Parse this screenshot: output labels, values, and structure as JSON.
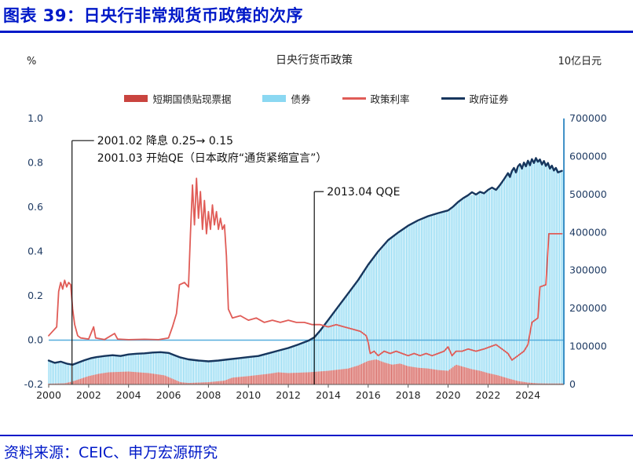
{
  "figure": {
    "title": "图表 39：日央行非常规货币政策的次序",
    "source": "资料来源：CEIC、申万宏源研究"
  },
  "colors": {
    "accent_blue": "#0019c8",
    "annotation_black": "#111111",
    "navy": "#17365d",
    "policy_red": "#e05c57",
    "bills_red": "#c9443f",
    "bond_lightblue": "#8bd8f2"
  },
  "chart_data": {
    "type": "combo",
    "title": "日央行货币政策",
    "grid": false,
    "legend_position": "top",
    "zero_line_color": "#56aedd",
    "right_spine_color": "#2e86c1",
    "left_axis": {
      "label": "%",
      "min": -0.2,
      "max": 1.0,
      "ticks": [
        "1.0",
        "0.8",
        "0.6",
        "0.4",
        "0.2",
        "0.0",
        "-0.2"
      ]
    },
    "right_axis": {
      "label": "10亿日元",
      "min": 0,
      "max": 700000,
      "ticks": [
        "700000",
        "600000",
        "500000",
        "400000",
        "300000",
        "200000",
        "100000",
        "0"
      ]
    },
    "x_axis": {
      "min": 2000,
      "max": 2025.8,
      "ticks": [
        "2000",
        "2002",
        "2004",
        "2006",
        "2008",
        "2010",
        "2012",
        "2014",
        "2016",
        "2018",
        "2020",
        "2022",
        "2024"
      ]
    },
    "series": [
      {
        "role": "bills",
        "name": "短期国债贴现票据",
        "type": "bar",
        "axis": "right",
        "color": "#c9443f",
        "color_light": "#f3c3bf",
        "points": [
          [
            2000.0,
            2000
          ],
          [
            2000.8,
            3000
          ],
          [
            2001.2,
            8000
          ],
          [
            2001.6,
            15000
          ],
          [
            2002.0,
            22000
          ],
          [
            2002.5,
            28000
          ],
          [
            2003.0,
            32000
          ],
          [
            2004.0,
            34000
          ],
          [
            2005.0,
            30000
          ],
          [
            2005.8,
            24000
          ],
          [
            2006.2,
            15000
          ],
          [
            2006.6,
            6000
          ],
          [
            2007.0,
            4000
          ],
          [
            2008.0,
            6000
          ],
          [
            2008.8,
            10000
          ],
          [
            2009.2,
            18000
          ],
          [
            2010.0,
            22000
          ],
          [
            2011.0,
            28000
          ],
          [
            2011.5,
            32000
          ],
          [
            2012.0,
            30000
          ],
          [
            2013.0,
            32000
          ],
          [
            2014.0,
            36000
          ],
          [
            2015.0,
            42000
          ],
          [
            2015.5,
            50000
          ],
          [
            2016.0,
            62000
          ],
          [
            2016.4,
            66000
          ],
          [
            2016.8,
            58000
          ],
          [
            2017.2,
            52000
          ],
          [
            2017.6,
            55000
          ],
          [
            2018.0,
            48000
          ],
          [
            2018.5,
            44000
          ],
          [
            2019.0,
            42000
          ],
          [
            2019.5,
            38000
          ],
          [
            2020.0,
            36000
          ],
          [
            2020.4,
            52000
          ],
          [
            2020.8,
            46000
          ],
          [
            2021.2,
            40000
          ],
          [
            2021.6,
            36000
          ],
          [
            2022.0,
            30000
          ],
          [
            2022.5,
            24000
          ],
          [
            2023.0,
            16000
          ],
          [
            2023.5,
            9000
          ],
          [
            2024.0,
            5000
          ],
          [
            2024.5,
            3000
          ],
          [
            2025.0,
            2500
          ],
          [
            2025.7,
            2500
          ]
        ]
      },
      {
        "role": "bonds",
        "name": "债券",
        "type": "bar",
        "axis": "right",
        "color": "#8bd8f2",
        "points": [
          [
            2000.0,
            62000
          ],
          [
            2000.5,
            57000
          ],
          [
            2001.0,
            54000
          ],
          [
            2001.5,
            58000
          ],
          [
            2002.0,
            68000
          ],
          [
            2003.0,
            76000
          ],
          [
            2004.0,
            79000
          ],
          [
            2005.0,
            83000
          ],
          [
            2006.0,
            82000
          ],
          [
            2006.5,
            74000
          ],
          [
            2007.0,
            65000
          ],
          [
            2008.0,
            60000
          ],
          [
            2009.0,
            65000
          ],
          [
            2010.0,
            71000
          ],
          [
            2011.0,
            81000
          ],
          [
            2012.0,
            95000
          ],
          [
            2013.0,
            114000
          ],
          [
            2013.5,
            132000
          ],
          [
            2014.0,
            168000
          ],
          [
            2015.0,
            238000
          ],
          [
            2016.0,
            312000
          ],
          [
            2017.0,
            378000
          ],
          [
            2018.0,
            416000
          ],
          [
            2019.0,
            441000
          ],
          [
            2020.0,
            456000
          ],
          [
            2020.5,
            478000
          ],
          [
            2021.0,
            496000
          ],
          [
            2021.5,
            503000
          ],
          [
            2022.0,
            510000
          ],
          [
            2022.5,
            518000
          ],
          [
            2023.0,
            554000
          ],
          [
            2023.5,
            572000
          ],
          [
            2024.0,
            587000
          ],
          [
            2024.4,
            593000
          ],
          [
            2024.8,
            586000
          ],
          [
            2025.2,
            574000
          ],
          [
            2025.7,
            560000
          ]
        ]
      },
      {
        "role": "policy",
        "name": "政策利率",
        "type": "line",
        "axis": "left",
        "color": "#e05c57",
        "points": [
          [
            2000.0,
            0.02
          ],
          [
            2000.2,
            0.04
          ],
          [
            2000.4,
            0.06
          ],
          [
            2000.5,
            0.22
          ],
          [
            2000.6,
            0.26
          ],
          [
            2000.7,
            0.23
          ],
          [
            2000.8,
            0.27
          ],
          [
            2000.9,
            0.24
          ],
          [
            2001.0,
            0.26
          ],
          [
            2001.1,
            0.25
          ],
          [
            2001.2,
            0.14
          ],
          [
            2001.3,
            0.07
          ],
          [
            2001.45,
            0.02
          ],
          [
            2001.6,
            0.01
          ],
          [
            2002.0,
            0.005
          ],
          [
            2002.25,
            0.06
          ],
          [
            2002.35,
            0.01
          ],
          [
            2002.8,
            0.003
          ],
          [
            2003.3,
            0.03
          ],
          [
            2003.45,
            0.005
          ],
          [
            2004.0,
            0.002
          ],
          [
            2004.8,
            0.004
          ],
          [
            2005.5,
            0.002
          ],
          [
            2006.0,
            0.01
          ],
          [
            2006.2,
            0.06
          ],
          [
            2006.4,
            0.12
          ],
          [
            2006.55,
            0.25
          ],
          [
            2006.8,
            0.26
          ],
          [
            2007.0,
            0.24
          ],
          [
            2007.1,
            0.48
          ],
          [
            2007.2,
            0.7
          ],
          [
            2007.3,
            0.52
          ],
          [
            2007.4,
            0.73
          ],
          [
            2007.5,
            0.55
          ],
          [
            2007.6,
            0.67
          ],
          [
            2007.7,
            0.5
          ],
          [
            2007.8,
            0.63
          ],
          [
            2007.9,
            0.48
          ],
          [
            2008.0,
            0.58
          ],
          [
            2008.1,
            0.5
          ],
          [
            2008.2,
            0.61
          ],
          [
            2008.3,
            0.52
          ],
          [
            2008.4,
            0.58
          ],
          [
            2008.5,
            0.5
          ],
          [
            2008.6,
            0.55
          ],
          [
            2008.7,
            0.5
          ],
          [
            2008.8,
            0.52
          ],
          [
            2008.9,
            0.38
          ],
          [
            2009.0,
            0.14
          ],
          [
            2009.2,
            0.1
          ],
          [
            2009.6,
            0.11
          ],
          [
            2010.0,
            0.09
          ],
          [
            2010.4,
            0.1
          ],
          [
            2010.8,
            0.08
          ],
          [
            2011.2,
            0.09
          ],
          [
            2011.6,
            0.08
          ],
          [
            2012.0,
            0.09
          ],
          [
            2012.4,
            0.08
          ],
          [
            2012.8,
            0.08
          ],
          [
            2013.2,
            0.07
          ],
          [
            2013.6,
            0.07
          ],
          [
            2014.0,
            0.06
          ],
          [
            2014.4,
            0.07
          ],
          [
            2014.8,
            0.06
          ],
          [
            2015.2,
            0.05
          ],
          [
            2015.6,
            0.04
          ],
          [
            2015.9,
            0.02
          ],
          [
            2016.0,
            -0.01
          ],
          [
            2016.1,
            -0.06
          ],
          [
            2016.3,
            -0.05
          ],
          [
            2016.5,
            -0.07
          ],
          [
            2016.8,
            -0.05
          ],
          [
            2017.1,
            -0.06
          ],
          [
            2017.4,
            -0.05
          ],
          [
            2017.7,
            -0.06
          ],
          [
            2018.0,
            -0.07
          ],
          [
            2018.3,
            -0.06
          ],
          [
            2018.6,
            -0.07
          ],
          [
            2018.9,
            -0.06
          ],
          [
            2019.2,
            -0.07
          ],
          [
            2019.5,
            -0.06
          ],
          [
            2019.8,
            -0.05
          ],
          [
            2020.0,
            -0.03
          ],
          [
            2020.2,
            -0.07
          ],
          [
            2020.4,
            -0.05
          ],
          [
            2020.7,
            -0.05
          ],
          [
            2021.0,
            -0.04
          ],
          [
            2021.4,
            -0.05
          ],
          [
            2021.8,
            -0.04
          ],
          [
            2022.1,
            -0.03
          ],
          [
            2022.4,
            -0.02
          ],
          [
            2022.7,
            -0.04
          ],
          [
            2023.0,
            -0.06
          ],
          [
            2023.2,
            -0.09
          ],
          [
            2023.5,
            -0.07
          ],
          [
            2023.8,
            -0.05
          ],
          [
            2024.0,
            -0.02
          ],
          [
            2024.2,
            0.08
          ],
          [
            2024.5,
            0.1
          ],
          [
            2024.6,
            0.24
          ],
          [
            2024.9,
            0.25
          ],
          [
            2025.05,
            0.48
          ],
          [
            2025.7,
            0.48
          ]
        ]
      },
      {
        "role": "gov",
        "name": "政府证券",
        "type": "line",
        "axis": "right",
        "color": "#17365d",
        "points": [
          [
            2000.0,
            63000
          ],
          [
            2000.3,
            57000
          ],
          [
            2000.6,
            60000
          ],
          [
            2000.9,
            55000
          ],
          [
            2001.2,
            52000
          ],
          [
            2001.5,
            58000
          ],
          [
            2001.8,
            64000
          ],
          [
            2002.1,
            69000
          ],
          [
            2002.4,
            72000
          ],
          [
            2002.8,
            75000
          ],
          [
            2003.2,
            77000
          ],
          [
            2003.6,
            75000
          ],
          [
            2004.0,
            79000
          ],
          [
            2004.4,
            81000
          ],
          [
            2004.8,
            82000
          ],
          [
            2005.2,
            84000
          ],
          [
            2005.6,
            85000
          ],
          [
            2006.0,
            83000
          ],
          [
            2006.3,
            77000
          ],
          [
            2006.6,
            71000
          ],
          [
            2007.0,
            66000
          ],
          [
            2007.5,
            63000
          ],
          [
            2008.0,
            61000
          ],
          [
            2008.5,
            63000
          ],
          [
            2009.0,
            66000
          ],
          [
            2009.5,
            69000
          ],
          [
            2010.0,
            72000
          ],
          [
            2010.5,
            75000
          ],
          [
            2011.0,
            82000
          ],
          [
            2011.5,
            89000
          ],
          [
            2012.0,
            96000
          ],
          [
            2012.5,
            105000
          ],
          [
            2013.0,
            115000
          ],
          [
            2013.3,
            124000
          ],
          [
            2013.6,
            142000
          ],
          [
            2014.0,
            170000
          ],
          [
            2014.5,
            205000
          ],
          [
            2015.0,
            240000
          ],
          [
            2015.5,
            275000
          ],
          [
            2016.0,
            315000
          ],
          [
            2016.5,
            350000
          ],
          [
            2017.0,
            380000
          ],
          [
            2017.5,
            400000
          ],
          [
            2018.0,
            418000
          ],
          [
            2018.5,
            432000
          ],
          [
            2019.0,
            443000
          ],
          [
            2019.5,
            451000
          ],
          [
            2020.0,
            458000
          ],
          [
            2020.25,
            468000
          ],
          [
            2020.5,
            480000
          ],
          [
            2020.75,
            490000
          ],
          [
            2021.0,
            498000
          ],
          [
            2021.2,
            506000
          ],
          [
            2021.4,
            500000
          ],
          [
            2021.6,
            507000
          ],
          [
            2021.8,
            503000
          ],
          [
            2022.0,
            512000
          ],
          [
            2022.2,
            518000
          ],
          [
            2022.4,
            512000
          ],
          [
            2022.6,
            525000
          ],
          [
            2022.8,
            540000
          ],
          [
            2023.0,
            556000
          ],
          [
            2023.1,
            546000
          ],
          [
            2023.2,
            562000
          ],
          [
            2023.3,
            570000
          ],
          [
            2023.4,
            558000
          ],
          [
            2023.5,
            574000
          ],
          [
            2023.6,
            580000
          ],
          [
            2023.7,
            568000
          ],
          [
            2023.8,
            584000
          ],
          [
            2023.9,
            574000
          ],
          [
            2024.0,
            589000
          ],
          [
            2024.1,
            577000
          ],
          [
            2024.2,
            593000
          ],
          [
            2024.3,
            583000
          ],
          [
            2024.4,
            596000
          ],
          [
            2024.5,
            586000
          ],
          [
            2024.6,
            592000
          ],
          [
            2024.7,
            579000
          ],
          [
            2024.8,
            588000
          ],
          [
            2024.9,
            575000
          ],
          [
            2025.0,
            583000
          ],
          [
            2025.1,
            568000
          ],
          [
            2025.2,
            576000
          ],
          [
            2025.3,
            563000
          ],
          [
            2025.4,
            570000
          ],
          [
            2025.5,
            558000
          ],
          [
            2025.7,
            562000
          ]
        ]
      }
    ],
    "annotations": [
      {
        "x": 2001.17,
        "y_top": 0.9,
        "indent": 28,
        "lines": [
          "2001.02 降息 0.25→ 0.15",
          "2001.03 开始QE（日本政府“通货紧缩宣言”）"
        ]
      },
      {
        "x": 2013.3,
        "y_top": 0.67,
        "indent": 12,
        "lines": [
          "2013.04 QQE"
        ]
      }
    ]
  }
}
